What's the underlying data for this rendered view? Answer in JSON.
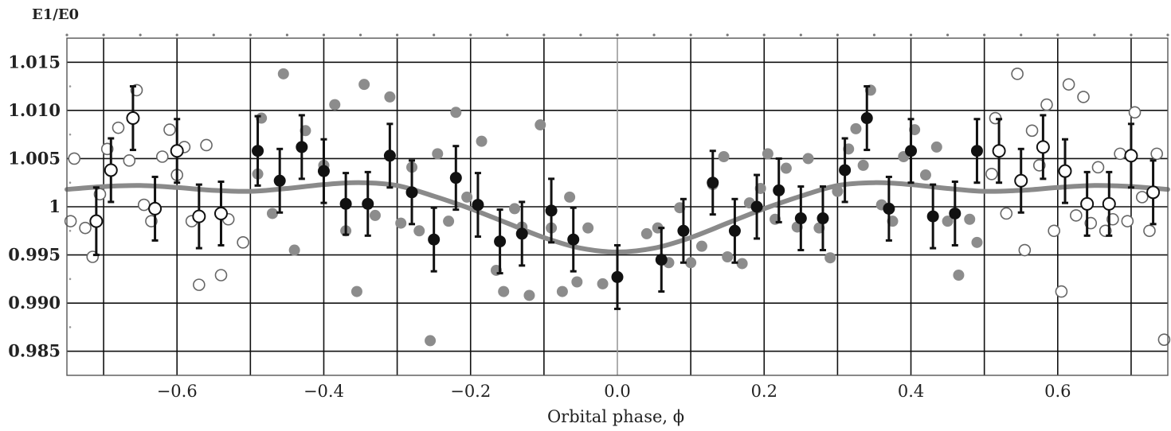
{
  "chart_data": {
    "type": "scatter",
    "title": "",
    "xlabel": "Orbital phase, ϕ",
    "ylabel": "E1/E0",
    "xlim": [
      -0.75,
      0.75
    ],
    "ylim": [
      0.9825,
      1.0175
    ],
    "grid": true,
    "x_ticks": [
      -0.6,
      -0.4,
      -0.2,
      0.0,
      0.2,
      0.4,
      0.6
    ],
    "x_tick_labels": [
      "−0.6",
      "−0.4",
      "−0.2",
      "0.0",
      "0.2",
      "0.4",
      "0.6"
    ],
    "x_grid": [
      -0.7,
      -0.6,
      -0.5,
      -0.4,
      -0.3,
      -0.2,
      -0.1,
      0.0,
      0.1,
      0.2,
      0.3,
      0.4,
      0.5,
      0.6,
      0.7
    ],
    "y_ticks": [
      0.985,
      0.99,
      0.995,
      1.0,
      1.005,
      1.01,
      1.015
    ],
    "y_tick_labels": [
      "0.985",
      "0.990",
      "0.995",
      "1",
      "1.005",
      "1.010",
      "1.015"
    ],
    "y_grid": [
      0.985,
      0.99,
      0.995,
      1.0,
      1.005,
      1.01,
      1.015
    ],
    "colors": {
      "binned": "#111111",
      "raw": "#8c8c8c",
      "raw_repeated": "#666666",
      "model": "#8a8a8a",
      "grid": "#111111",
      "zero_line": "#9a9a9a"
    },
    "series": [
      {
        "style": "binned-with-error",
        "x": [
          -0.71,
          -0.69,
          -0.66,
          -0.63,
          -0.6,
          -0.57,
          -0.54,
          -0.49,
          -0.46,
          -0.43,
          -0.4,
          -0.37,
          -0.34,
          -0.31,
          -0.28,
          -0.25,
          -0.22,
          -0.19,
          -0.16,
          -0.13,
          -0.09,
          -0.06,
          0.0,
          0.06,
          0.09,
          0.13,
          0.16,
          0.19,
          0.22,
          0.25,
          0.28,
          0.31,
          0.34,
          0.37,
          0.4,
          0.43,
          0.46,
          0.49,
          0.52,
          0.55,
          0.58,
          0.61,
          0.64,
          0.67,
          0.7,
          0.73
        ],
        "y": [
          0.9985,
          1.0038,
          1.0092,
          0.9998,
          1.0058,
          0.999,
          0.9993,
          1.0058,
          1.0027,
          1.0062,
          1.0037,
          1.0003,
          1.0003,
          1.0053,
          1.0015,
          0.9966,
          1.003,
          1.0002,
          0.9964,
          0.9972,
          0.9996,
          0.9966,
          0.9927,
          0.9945,
          0.9975,
          1.0025,
          0.9975,
          1.0,
          1.0017,
          0.9988,
          0.9988,
          1.0038,
          1.0092,
          0.9998,
          1.0058,
          0.999,
          0.9993,
          1.0058,
          1.0058,
          1.0027,
          1.0062,
          1.0037,
          1.0003,
          1.0003,
          1.0053,
          1.0015
        ],
        "err": [
          0.0035,
          0.0033,
          0.0033,
          0.0033,
          0.0033,
          0.0033,
          0.0033,
          0.0036,
          0.0033,
          0.0033,
          0.0033,
          0.0032,
          0.0033,
          0.0033,
          0.0033,
          0.0033,
          0.0033,
          0.0033,
          0.0033,
          0.0033,
          0.0033,
          0.0033,
          0.0033,
          0.0033,
          0.0033,
          0.0033,
          0.0033,
          0.0033,
          0.0033,
          0.0033,
          0.0033,
          0.0033,
          0.0033,
          0.0033,
          0.0033,
          0.0033,
          0.0033,
          0.0033,
          0.0033,
          0.0033,
          0.0033,
          0.0033,
          0.0033,
          0.0033,
          0.0033,
          0.0033
        ]
      },
      {
        "style": "raw",
        "x": [
          -0.49,
          -0.485,
          -0.47,
          -0.455,
          -0.44,
          -0.425,
          -0.4,
          -0.385,
          -0.37,
          -0.355,
          -0.345,
          -0.33,
          -0.31,
          -0.295,
          -0.28,
          -0.27,
          -0.255,
          -0.245,
          -0.23,
          -0.22,
          -0.205,
          -0.185,
          -0.165,
          -0.155,
          -0.14,
          -0.13,
          -0.12,
          -0.105,
          -0.09,
          -0.075,
          -0.065,
          -0.055,
          -0.04,
          -0.02,
          0.04,
          0.055,
          0.07,
          0.085,
          0.1,
          0.115,
          0.13,
          0.145,
          0.15,
          0.17,
          0.18,
          0.195,
          0.205,
          0.215,
          0.23,
          0.245,
          0.26,
          0.275,
          0.29,
          0.3,
          0.315,
          0.325,
          0.335,
          0.345,
          0.36,
          0.375,
          0.39,
          0.405,
          0.42,
          0.435,
          0.45,
          0.465,
          0.48,
          0.49
        ],
        "y": [
          1.0034,
          1.0092,
          0.9993,
          1.0138,
          0.9955,
          1.0079,
          1.0043,
          1.0106,
          0.9975,
          0.9912,
          1.0127,
          0.9991,
          1.0114,
          0.9983,
          1.0041,
          0.9975,
          0.9861,
          1.0055,
          0.9985,
          1.0098,
          1.001,
          1.0068,
          0.9934,
          0.9912,
          0.9998,
          0.9979,
          0.9908,
          1.0085,
          0.9978,
          0.9912,
          1.001,
          0.9922,
          0.9978,
          0.992,
          0.9972,
          0.9978,
          0.9942,
          0.9999,
          0.9942,
          0.9959,
          1.0023,
          1.0052,
          0.9948,
          0.9941,
          1.0004,
          1.0019,
          1.0055,
          0.9987,
          1.004,
          0.9979,
          1.005,
          0.9978,
          0.9947,
          1.0016,
          1.006,
          1.0081,
          1.0043,
          1.0121,
          1.0002,
          0.9985,
          1.0052,
          1.008,
          1.0033,
          1.0062,
          0.9985,
          0.9929,
          0.9987,
          0.9963
        ]
      },
      {
        "style": "raw-repeated",
        "x": [
          -0.745,
          -0.74,
          -0.725,
          -0.715,
          -0.705,
          -0.695,
          -0.68,
          -0.665,
          -0.655,
          -0.645,
          -0.635,
          -0.62,
          -0.61,
          -0.6,
          -0.59,
          -0.58,
          -0.57,
          -0.56,
          -0.54,
          -0.53,
          -0.51,
          0.51,
          0.515,
          0.53,
          0.545,
          0.555,
          0.565,
          0.575,
          0.585,
          0.595,
          0.605,
          0.615,
          0.625,
          0.635,
          0.645,
          0.655,
          0.665,
          0.675,
          0.685,
          0.695,
          0.705,
          0.715,
          0.725,
          0.735,
          0.745
        ],
        "y": [
          0.9985,
          1.005,
          0.9978,
          0.9948,
          1.0013,
          1.006,
          1.0082,
          1.0048,
          1.0121,
          1.0002,
          0.9985,
          1.0052,
          1.008,
          1.0033,
          1.0062,
          0.9985,
          0.9919,
          1.0064,
          0.9929,
          0.9987,
          0.9963,
          1.0034,
          1.0092,
          0.9993,
          1.0138,
          0.9955,
          1.0079,
          1.0043,
          1.0106,
          0.9975,
          0.9912,
          1.0127,
          0.9991,
          1.0114,
          0.9983,
          1.0041,
          0.9975,
          0.9987,
          1.0055,
          0.9985,
          1.0098,
          1.001,
          0.9975,
          1.0055,
          0.9862
        ]
      },
      {
        "style": "model-curve",
        "x": [
          -0.75,
          -0.7,
          -0.65,
          -0.6,
          -0.55,
          -0.5,
          -0.45,
          -0.4,
          -0.35,
          -0.3,
          -0.25,
          -0.2,
          -0.15,
          -0.1,
          -0.05,
          0.0,
          0.05,
          0.1,
          0.15,
          0.2,
          0.25,
          0.3,
          0.35,
          0.4,
          0.45,
          0.5,
          0.55,
          0.6,
          0.65,
          0.7,
          0.75
        ],
        "y": [
          1.0018,
          1.0021,
          1.0022,
          1.002,
          1.0017,
          1.0016,
          1.0019,
          1.0023,
          1.0025,
          1.0022,
          1.0011,
          0.9998,
          0.9983,
          0.9968,
          0.9957,
          0.9953,
          0.9957,
          0.9968,
          0.9983,
          0.9998,
          1.0011,
          1.0022,
          1.0025,
          1.0023,
          1.0019,
          1.0016,
          1.0017,
          1.002,
          1.0022,
          1.0021,
          1.0018
        ]
      }
    ]
  }
}
